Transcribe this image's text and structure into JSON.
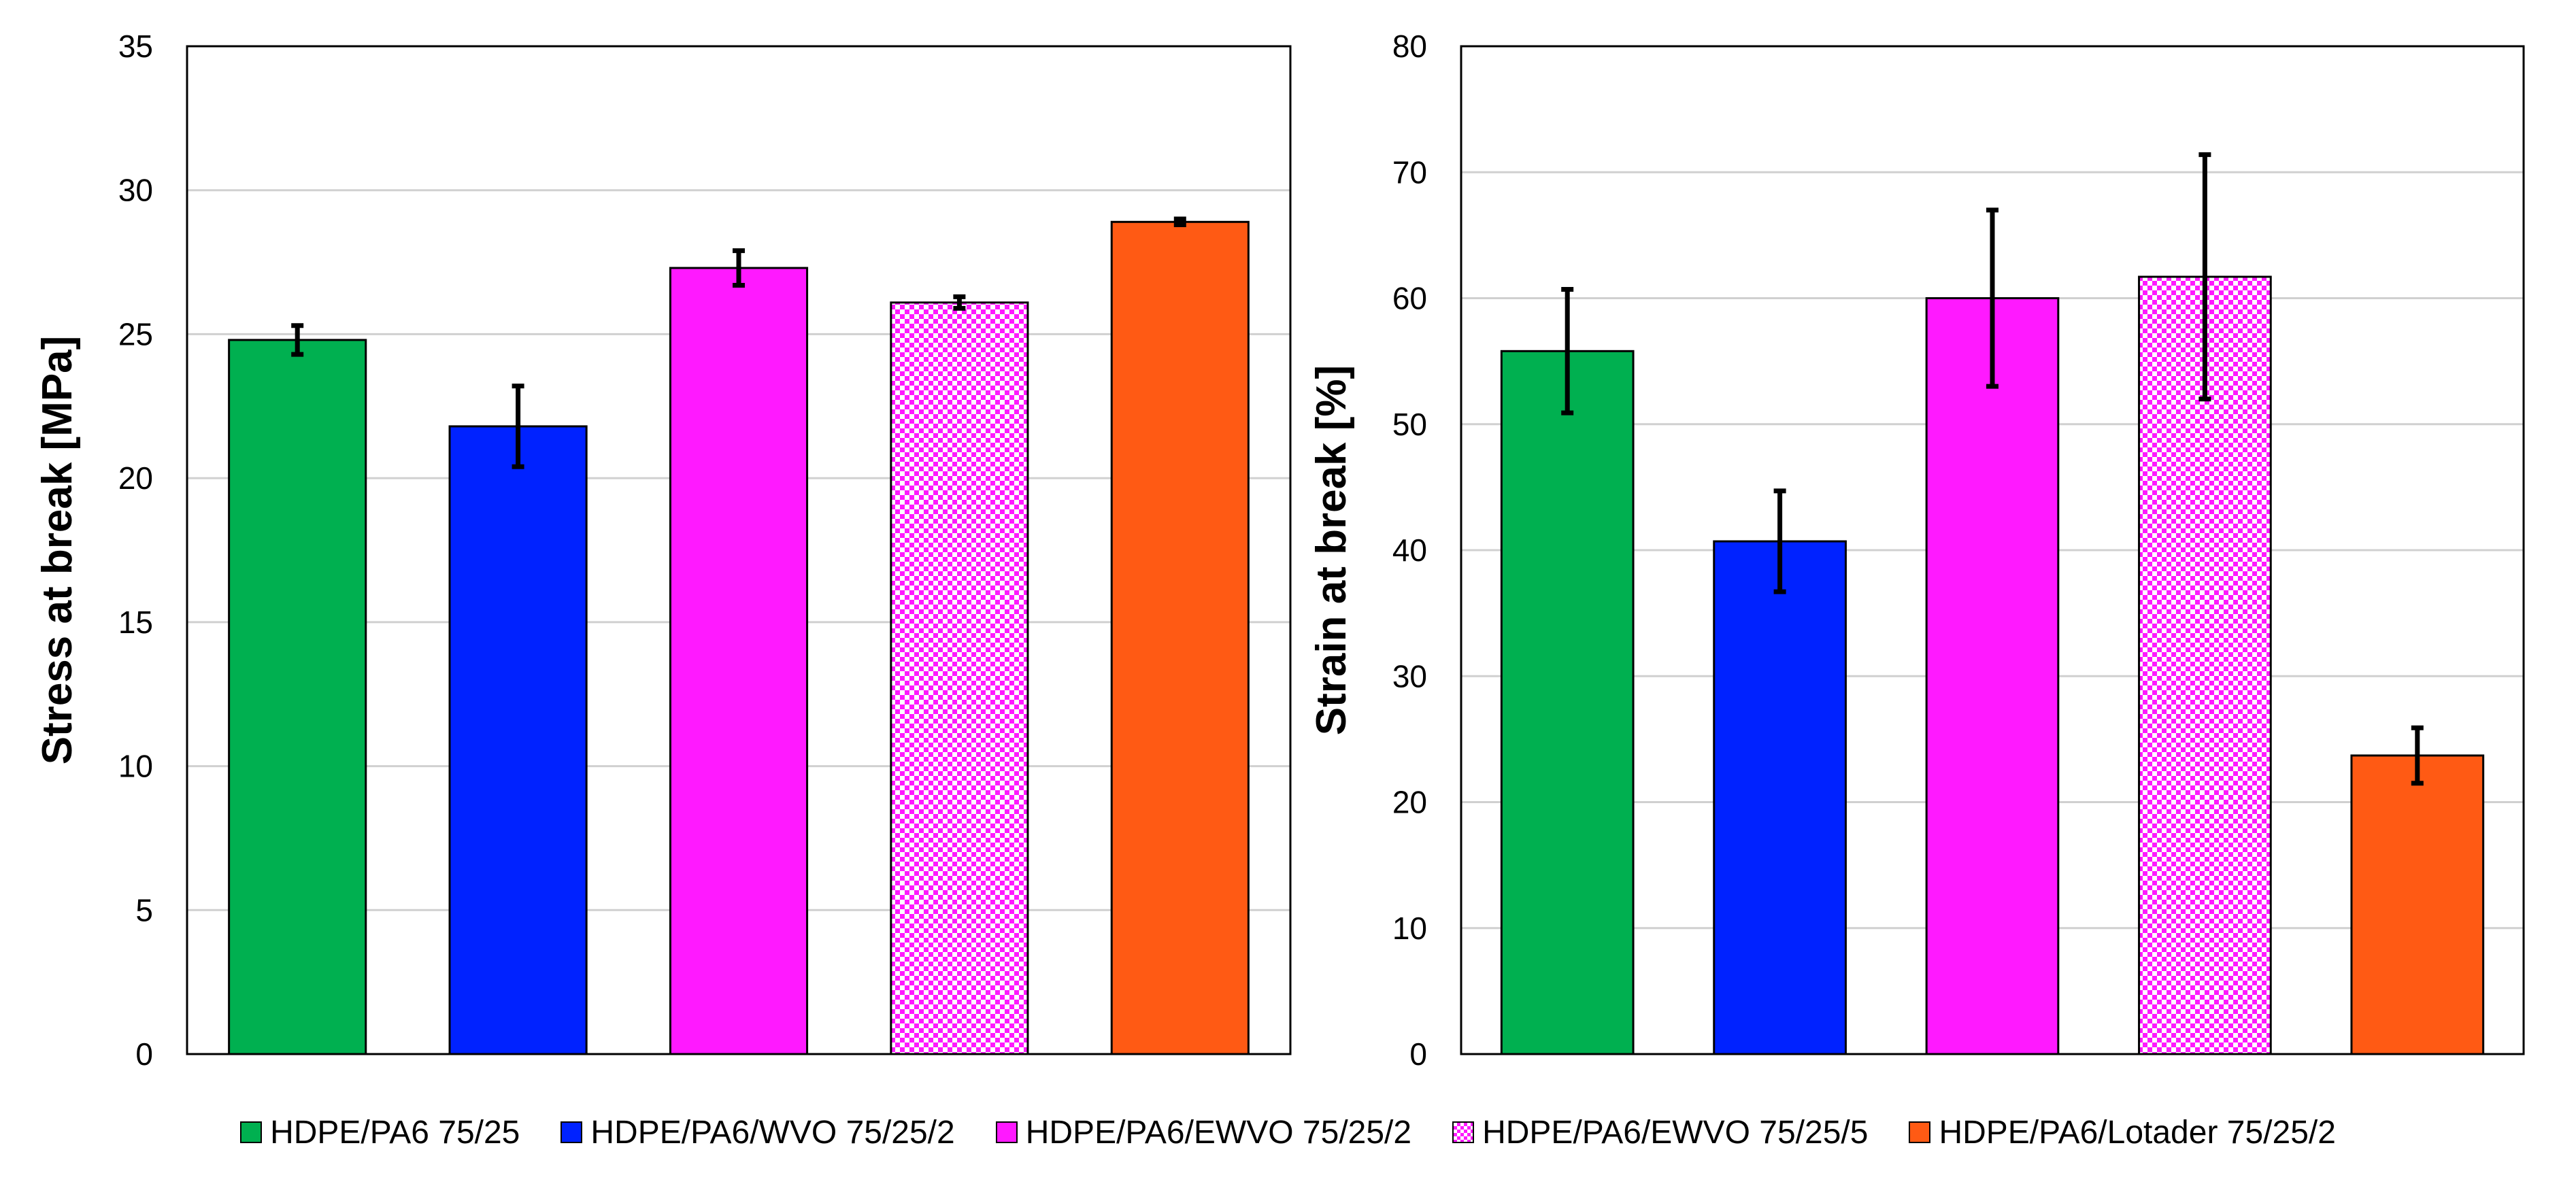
{
  "legend": {
    "items": [
      {
        "label": "HDPE/PA6 75/25",
        "color": "#00b050",
        "pattern": "solid"
      },
      {
        "label": "HDPE/PA6/WVO 75/25/2",
        "color": "#0022ff",
        "pattern": "solid"
      },
      {
        "label": "HDPE/PA6/EWVO 75/25/2",
        "color": "#ff19ff",
        "pattern": "solid"
      },
      {
        "label": "HDPE/PA6/EWVO 75/25/5",
        "color": "#ff19ff",
        "pattern": "checker"
      },
      {
        "label": "HDPE/PA6/Lotader 75/25/2",
        "color": "#ff5a14",
        "pattern": "solid"
      }
    ]
  },
  "chart_data": [
    {
      "type": "bar",
      "title": "",
      "xlabel": "",
      "ylabel": "Stress at break [MPa]",
      "ylim": [
        0,
        35
      ],
      "yticks": [
        0,
        5,
        10,
        15,
        20,
        25,
        30,
        35
      ],
      "grid": true,
      "categories": [
        "HDPE/PA6 75/25",
        "HDPE/PA6/WVO 75/25/2",
        "HDPE/PA6/EWVO 75/25/2",
        "HDPE/PA6/EWVO 75/25/5",
        "HDPE/PA6/Lotader 75/25/2"
      ],
      "values": [
        24.8,
        21.8,
        27.3,
        26.1,
        28.9
      ],
      "errors": [
        0.5,
        1.4,
        0.6,
        0.2,
        0.1
      ]
    },
    {
      "type": "bar",
      "title": "",
      "xlabel": "",
      "ylabel": "Strain at break [%]",
      "ylim": [
        0,
        80
      ],
      "yticks": [
        0,
        10,
        20,
        30,
        40,
        50,
        60,
        70,
        80
      ],
      "grid": true,
      "categories": [
        "HDPE/PA6 75/25",
        "HDPE/PA6/WVO 75/25/2",
        "HDPE/PA6/EWVO 75/25/2",
        "HDPE/PA6/EWVO 75/25/5",
        "HDPE/PA6/Lotader 75/25/2"
      ],
      "values": [
        55.8,
        40.7,
        60.0,
        61.7,
        23.7
      ],
      "errors": [
        4.9,
        4.0,
        7.0,
        9.7,
        2.2
      ]
    }
  ]
}
